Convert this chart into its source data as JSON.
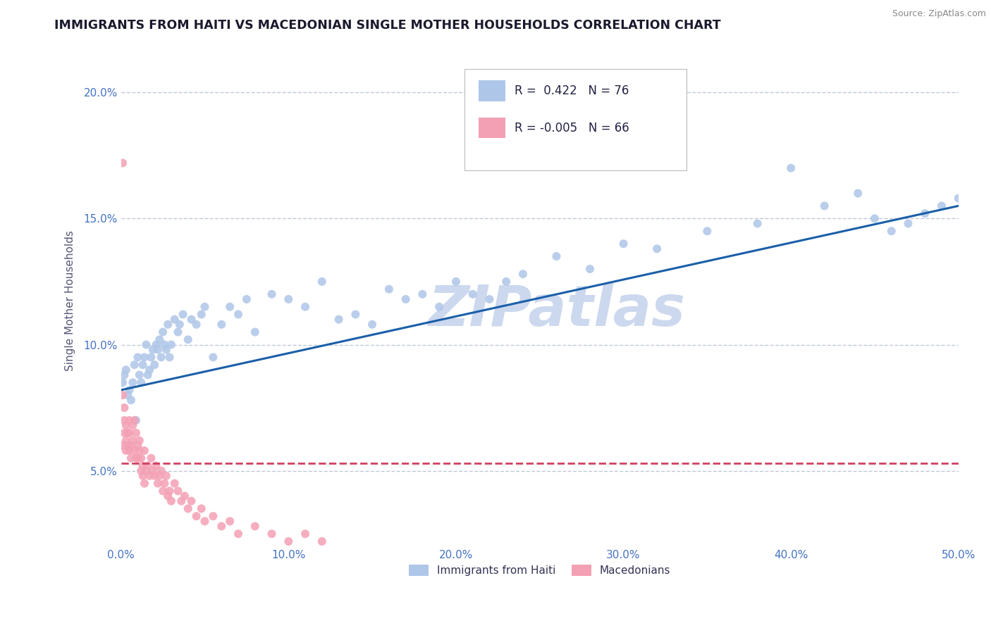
{
  "title": "IMMIGRANTS FROM HAITI VS MACEDONIAN SINGLE MOTHER HOUSEHOLDS CORRELATION CHART",
  "source": "Source: ZipAtlas.com",
  "ylabel": "Single Mother Households",
  "xlim": [
    0.0,
    0.5
  ],
  "ylim": [
    0.02,
    0.215
  ],
  "xticks": [
    0.0,
    0.1,
    0.2,
    0.3,
    0.4,
    0.5
  ],
  "xtick_labels": [
    "0.0%",
    "10.0%",
    "20.0%",
    "30.0%",
    "40.0%",
    "50.0%"
  ],
  "yticks": [
    0.05,
    0.1,
    0.15,
    0.2
  ],
  "ytick_labels": [
    "5.0%",
    "10.0%",
    "15.0%",
    "20.0%"
  ],
  "haiti_color": "#aec6e8",
  "macedonian_color": "#f4a0b4",
  "haiti_line_color": "#1a5fa8",
  "macedonian_line_color": "#d04060",
  "haiti_R": 0.422,
  "haiti_N": 76,
  "macedonian_R": -0.005,
  "macedonian_N": 66,
  "watermark": "ZIPatlas",
  "watermark_color": "#ccd8ee",
  "legend_label_haiti": "Immigrants from Haiti",
  "legend_label_macedonian": "Macedonians",
  "title_color": "#1a1a2e",
  "tick_color": "#4472c4",
  "grid_color": "#c0c8d8",
  "haiti_line_start_y": 0.082,
  "haiti_line_end_y": 0.155,
  "macedonian_line_y": 0.053,
  "haiti_scatter_x": [
    0.001,
    0.002,
    0.003,
    0.004,
    0.005,
    0.006,
    0.007,
    0.008,
    0.009,
    0.01,
    0.011,
    0.012,
    0.013,
    0.014,
    0.015,
    0.016,
    0.017,
    0.018,
    0.019,
    0.02,
    0.021,
    0.022,
    0.023,
    0.024,
    0.025,
    0.026,
    0.027,
    0.028,
    0.029,
    0.03,
    0.032,
    0.034,
    0.035,
    0.037,
    0.04,
    0.042,
    0.045,
    0.048,
    0.05,
    0.055,
    0.06,
    0.065,
    0.07,
    0.075,
    0.08,
    0.09,
    0.1,
    0.11,
    0.12,
    0.13,
    0.14,
    0.15,
    0.16,
    0.17,
    0.18,
    0.19,
    0.2,
    0.21,
    0.22,
    0.23,
    0.24,
    0.26,
    0.28,
    0.3,
    0.32,
    0.35,
    0.38,
    0.4,
    0.42,
    0.44,
    0.45,
    0.46,
    0.47,
    0.48,
    0.49,
    0.5
  ],
  "haiti_scatter_y": [
    0.085,
    0.088,
    0.09,
    0.08,
    0.082,
    0.078,
    0.085,
    0.092,
    0.07,
    0.095,
    0.088,
    0.085,
    0.092,
    0.095,
    0.1,
    0.088,
    0.09,
    0.095,
    0.098,
    0.092,
    0.1,
    0.098,
    0.102,
    0.095,
    0.105,
    0.1,
    0.098,
    0.108,
    0.095,
    0.1,
    0.11,
    0.105,
    0.108,
    0.112,
    0.102,
    0.11,
    0.108,
    0.112,
    0.115,
    0.095,
    0.108,
    0.115,
    0.112,
    0.118,
    0.105,
    0.12,
    0.118,
    0.115,
    0.125,
    0.11,
    0.112,
    0.108,
    0.122,
    0.118,
    0.12,
    0.115,
    0.125,
    0.12,
    0.118,
    0.125,
    0.128,
    0.135,
    0.13,
    0.14,
    0.138,
    0.145,
    0.148,
    0.17,
    0.155,
    0.16,
    0.15,
    0.145,
    0.148,
    0.152,
    0.155,
    0.158
  ],
  "macedonian_scatter_x": [
    0.001,
    0.001,
    0.001,
    0.002,
    0.002,
    0.002,
    0.003,
    0.003,
    0.003,
    0.004,
    0.004,
    0.005,
    0.005,
    0.005,
    0.006,
    0.006,
    0.007,
    0.007,
    0.008,
    0.008,
    0.009,
    0.009,
    0.01,
    0.01,
    0.011,
    0.011,
    0.012,
    0.012,
    0.013,
    0.013,
    0.014,
    0.014,
    0.015,
    0.016,
    0.017,
    0.018,
    0.019,
    0.02,
    0.021,
    0.022,
    0.023,
    0.024,
    0.025,
    0.026,
    0.027,
    0.028,
    0.029,
    0.03,
    0.032,
    0.034,
    0.036,
    0.038,
    0.04,
    0.042,
    0.045,
    0.048,
    0.05,
    0.055,
    0.06,
    0.065,
    0.07,
    0.08,
    0.09,
    0.1,
    0.11,
    0.12
  ],
  "macedonian_scatter_y": [
    0.172,
    0.08,
    0.06,
    0.075,
    0.07,
    0.065,
    0.062,
    0.068,
    0.058,
    0.065,
    0.06,
    0.058,
    0.07,
    0.065,
    0.06,
    0.055,
    0.068,
    0.062,
    0.07,
    0.058,
    0.055,
    0.065,
    0.06,
    0.055,
    0.058,
    0.062,
    0.05,
    0.055,
    0.048,
    0.052,
    0.058,
    0.045,
    0.05,
    0.052,
    0.048,
    0.055,
    0.05,
    0.048,
    0.052,
    0.045,
    0.048,
    0.05,
    0.042,
    0.045,
    0.048,
    0.04,
    0.042,
    0.038,
    0.045,
    0.042,
    0.038,
    0.04,
    0.035,
    0.038,
    0.032,
    0.035,
    0.03,
    0.032,
    0.028,
    0.03,
    0.025,
    0.028,
    0.025,
    0.022,
    0.025,
    0.022
  ]
}
